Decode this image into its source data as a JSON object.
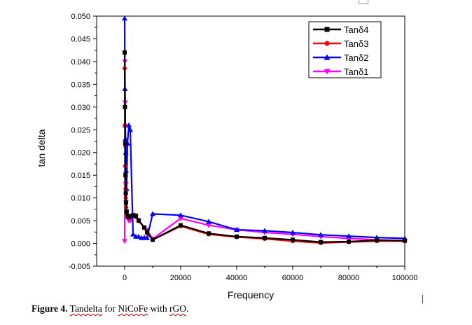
{
  "caption": {
    "label": "Figure 4.",
    "w1": "Tandelta",
    "w2": " for ",
    "w3": "NiCoFe",
    "w4": " with ",
    "w5": "rGO",
    "w6": "."
  },
  "chart_data": {
    "type": "line",
    "xlabel": "Frequency",
    "ylabel": "tan delta",
    "xlim": [
      -10000,
      100000
    ],
    "ylim": [
      -0.005,
      0.05
    ],
    "xticks": [
      0,
      20000,
      40000,
      60000,
      80000,
      100000
    ],
    "yticks": [
      -0.005,
      0.0,
      0.005,
      0.01,
      0.015,
      0.02,
      0.025,
      0.03,
      0.035,
      0.04,
      0.045,
      0.05
    ],
    "xtick_labels": [
      "0",
      "20000",
      "40000",
      "60000",
      "80000",
      "100000"
    ],
    "ytick_labels": [
      "-0.005",
      "0.000",
      "0.005",
      "0.010",
      "0.015",
      "0.020",
      "0.025",
      "0.030",
      "0.035",
      "0.040",
      "0.045",
      "0.050"
    ],
    "legend_position": "top-right",
    "series": [
      {
        "name": "Tanδ4",
        "color": "#000000",
        "marker": "square",
        "x": [
          0,
          100,
          200,
          300,
          400,
          500,
          700,
          1000,
          1500,
          2000,
          3000,
          4000,
          5000,
          7000,
          8000,
          10000,
          20000,
          30000,
          40000,
          50000,
          60000,
          70000,
          80000,
          90000,
          100000
        ],
        "y": [
          0.042,
          0.03,
          0.022,
          0.015,
          0.011,
          0.009,
          0.007,
          0.006,
          0.0058,
          0.006,
          0.0062,
          0.006,
          0.005,
          0.0035,
          0.0025,
          0.0008,
          0.004,
          0.0022,
          0.0015,
          0.0012,
          0.0008,
          0.0003,
          0.0004,
          0.0007,
          0.0006
        ]
      },
      {
        "name": "Tanδ3",
        "color": "#ff0000",
        "marker": "circle",
        "x": [
          0,
          100,
          200,
          300,
          400,
          500,
          700,
          1000,
          1500,
          2000,
          3000,
          4000,
          5000,
          7000,
          8000,
          10000,
          20000,
          30000,
          40000,
          50000,
          60000,
          70000,
          80000,
          90000,
          100000
        ],
        "y": [
          0.0385,
          0.026,
          0.017,
          0.012,
          0.01,
          0.008,
          0.0065,
          0.006,
          0.0055,
          0.006,
          0.0063,
          0.0062,
          0.0052,
          0.0035,
          0.0022,
          0.0008,
          0.0038,
          0.002,
          0.0014,
          0.001,
          0.0005,
          0.0001,
          0.0003,
          0.0005,
          0.0005
        ]
      },
      {
        "name": "Tanδ2",
        "color": "#0000ff",
        "marker": "triangle-up",
        "x": [
          0,
          100,
          200,
          300,
          400,
          500,
          700,
          1000,
          1500,
          2000,
          3000,
          4000,
          5000,
          6000,
          7000,
          8000,
          10000,
          20000,
          30000,
          40000,
          50000,
          60000,
          70000,
          80000,
          90000,
          100000
        ],
        "y": [
          0.0495,
          0.034,
          0.026,
          0.023,
          0.02,
          0.016,
          0.012,
          0.022,
          0.026,
          0.025,
          0.002,
          0.0015,
          0.0015,
          0.0012,
          0.0013,
          0.0012,
          0.0065,
          0.0062,
          0.0048,
          0.003,
          0.0028,
          0.0024,
          0.0019,
          0.0016,
          0.0013,
          0.0011
        ]
      },
      {
        "name": "Tanδ1",
        "color": "#ff00ff",
        "marker": "triangle-down",
        "x": [
          0,
          100,
          200,
          300,
          400,
          500,
          700,
          1000,
          1500,
          2000,
          3000,
          4000,
          5000,
          7000,
          8000,
          10000,
          20000,
          30000,
          40000,
          50000,
          60000,
          70000,
          80000,
          90000,
          100000
        ],
        "y": [
          0.0005,
          0.04,
          0.031,
          0.021,
          0.013,
          0.009,
          0.007,
          0.0055,
          0.005,
          0.005,
          0.006,
          0.0058,
          0.005,
          0.0035,
          0.003,
          0.001,
          0.0055,
          0.004,
          0.003,
          0.0024,
          0.002,
          0.0015,
          0.0011,
          0.0008,
          0.0006
        ]
      }
    ]
  }
}
